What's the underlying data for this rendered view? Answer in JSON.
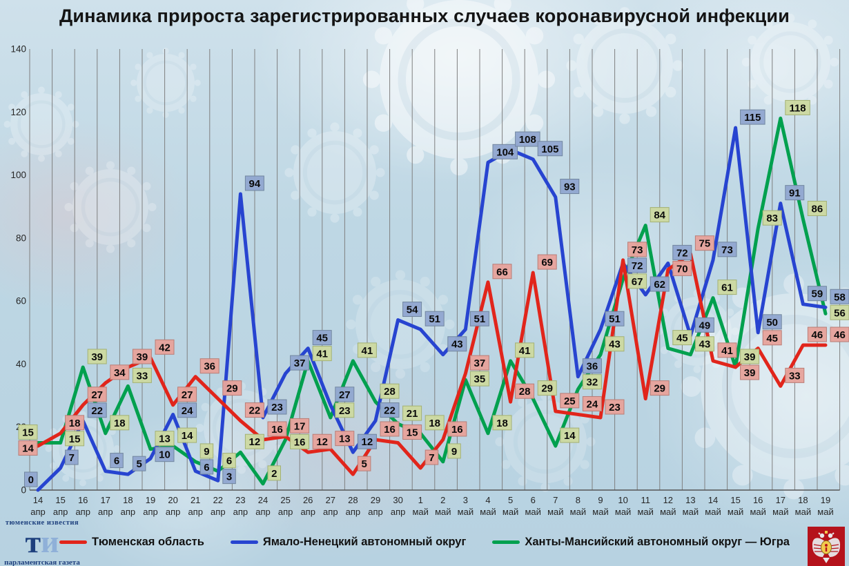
{
  "title": "Динамика прироста зарегистрированных случаев коронавирусной инфекции",
  "chart_data": {
    "type": "line",
    "categories": [
      {
        "day": "14",
        "month": "апр"
      },
      {
        "day": "15",
        "month": "апр"
      },
      {
        "day": "16",
        "month": "апр"
      },
      {
        "day": "17",
        "month": "апр"
      },
      {
        "day": "18",
        "month": "апр"
      },
      {
        "day": "19",
        "month": "апр"
      },
      {
        "day": "20",
        "month": "апр"
      },
      {
        "day": "21",
        "month": "апр"
      },
      {
        "day": "22",
        "month": "апр"
      },
      {
        "day": "23",
        "month": "апр"
      },
      {
        "day": "24",
        "month": "апр"
      },
      {
        "day": "25",
        "month": "апр"
      },
      {
        "day": "26",
        "month": "апр"
      },
      {
        "day": "27",
        "month": "апр"
      },
      {
        "day": "28",
        "month": "апр"
      },
      {
        "day": "29",
        "month": "апр"
      },
      {
        "day": "30",
        "month": "апр"
      },
      {
        "day": "1",
        "month": "май"
      },
      {
        "day": "2",
        "month": "май"
      },
      {
        "day": "3",
        "month": "май"
      },
      {
        "day": "4",
        "month": "май"
      },
      {
        "day": "5",
        "month": "май"
      },
      {
        "day": "6",
        "month": "май"
      },
      {
        "day": "7",
        "month": "май"
      },
      {
        "day": "8",
        "month": "май"
      },
      {
        "day": "9",
        "month": "май"
      },
      {
        "day": "10",
        "month": "май"
      },
      {
        "day": "11",
        "month": "май"
      },
      {
        "day": "12",
        "month": "май"
      },
      {
        "day": "13",
        "month": "май"
      },
      {
        "day": "14",
        "month": "май"
      },
      {
        "day": "15",
        "month": "май"
      },
      {
        "day": "16",
        "month": "май"
      },
      {
        "day": "17",
        "month": "май"
      },
      {
        "day": "18",
        "month": "май"
      },
      {
        "day": "19",
        "month": "май"
      }
    ],
    "series": [
      {
        "name": "Тюменская область",
        "color": "#e1251b",
        "label_bg": "#e6a39c",
        "label_border": "#b97d76",
        "values": [
          14,
          18,
          27,
          34,
          39,
          42,
          27,
          36,
          29,
          22,
          16,
          17,
          12,
          13,
          5,
          16,
          15,
          7,
          16,
          37,
          66,
          28,
          69,
          25,
          24,
          23,
          73,
          29,
          70,
          75,
          41,
          39,
          45,
          33,
          46,
          46
        ]
      },
      {
        "name": "Ямало-Ненецкий автономный округ",
        "color": "#2744d0",
        "label_bg": "#92a7cf",
        "label_border": "#71869f",
        "values": [
          0,
          7,
          22,
          6,
          5,
          10,
          24,
          6,
          3,
          94,
          23,
          37,
          45,
          27,
          12,
          22,
          54,
          51,
          43,
          51,
          104,
          108,
          105,
          93,
          36,
          51,
          72,
          62,
          72,
          49,
          73,
          115,
          50,
          91,
          59,
          58
        ]
      },
      {
        "name": "Ханты-Мансийский автономный округ — Югра",
        "color": "#00a04e",
        "label_bg": "#ccd9a1",
        "label_border": "#a3b173",
        "values": [
          15,
          15,
          39,
          18,
          33,
          13,
          14,
          9,
          6,
          12,
          2,
          16,
          41,
          23,
          41,
          28,
          21,
          18,
          9,
          35,
          18,
          41,
          29,
          14,
          32,
          43,
          67,
          84,
          45,
          43,
          61,
          39,
          83,
          118,
          86,
          56
        ]
      }
    ],
    "ylim": [
      0,
      140
    ],
    "yticks": [
      0,
      20,
      40,
      60,
      80,
      100,
      120,
      140
    ],
    "grid": "vertical-only",
    "legend_position": "bottom"
  },
  "footer": {
    "logo_top": "тюменские известия",
    "logo_main_1": "т",
    "logo_main_2": "и",
    "logo_bottom": "парламентская газета"
  }
}
